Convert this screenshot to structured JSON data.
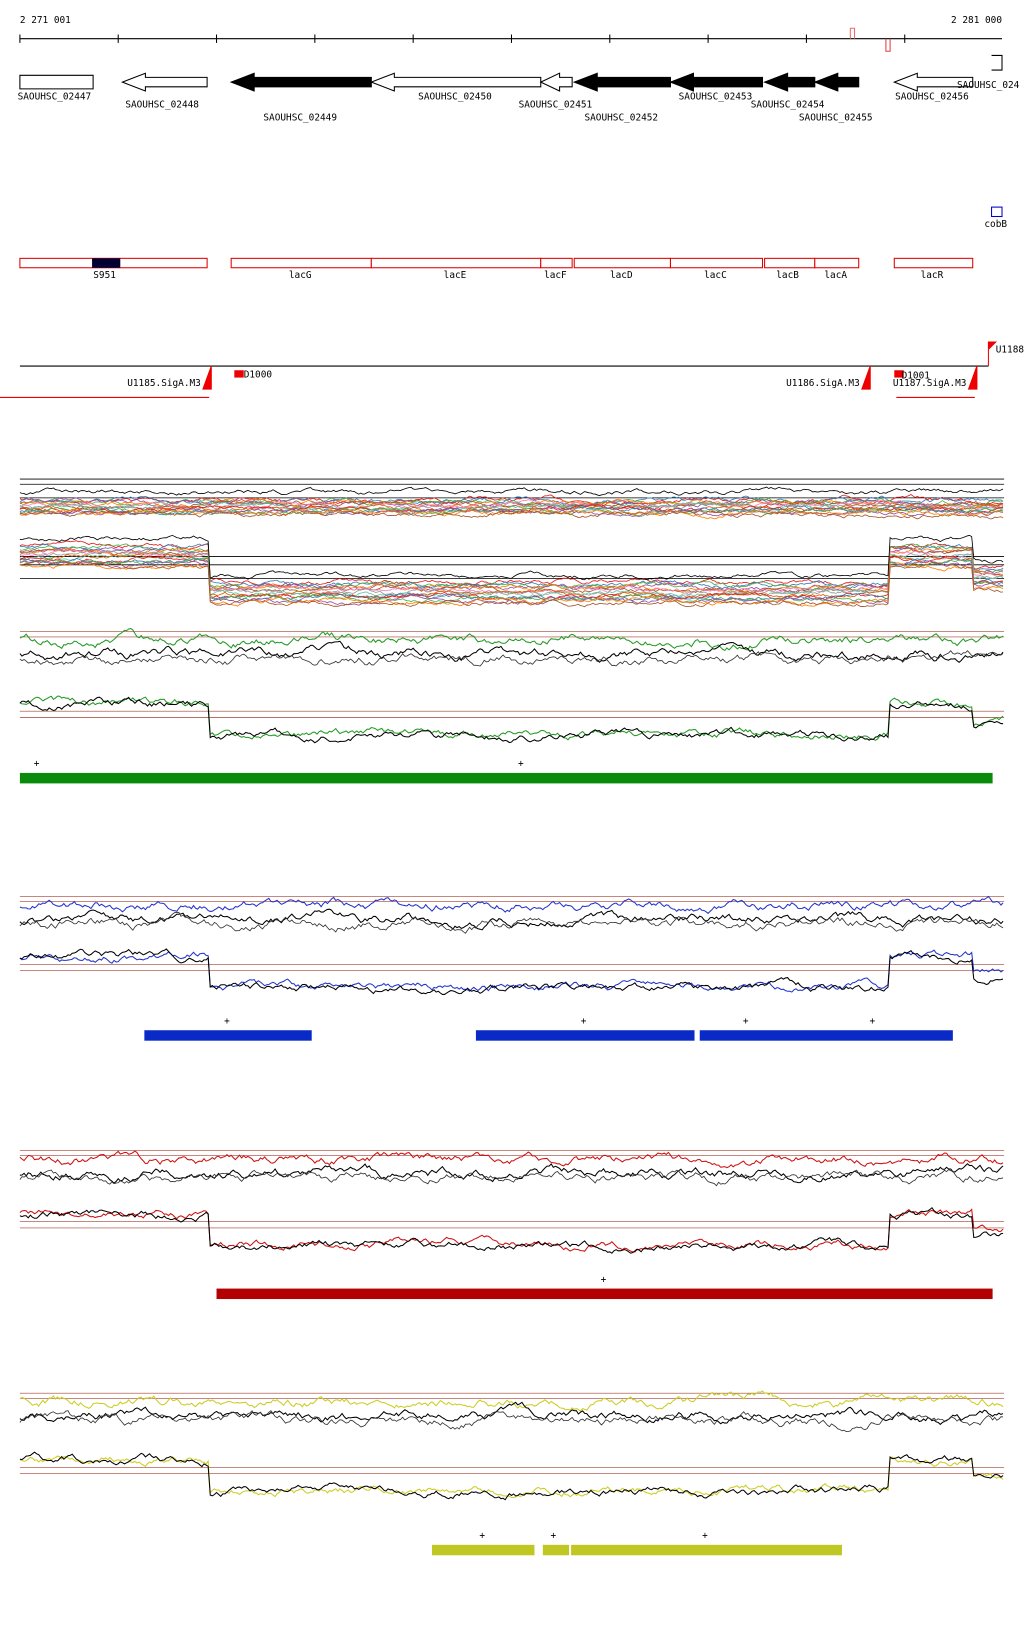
{
  "axis": {
    "start": "2 271 001",
    "end": "2 281 000"
  },
  "genes": [
    "SAOUHSC_02447",
    "SAOUHSC_02448",
    "SAOUHSC_02449",
    "SAOUHSC_02450",
    "SAOUHSC_02451",
    "SAOUHSC_02452",
    "SAOUHSC_02453",
    "SAOUHSC_02454",
    "SAOUHSC_02455",
    "SAOUHSC_02456",
    "SAOUHSC_024"
  ],
  "features": [
    "S951",
    "lacG",
    "lacE",
    "lacF",
    "lacD",
    "lacC",
    "lacB",
    "lacA",
    "lacR"
  ],
  "cobB": "cobB",
  "promoters": [
    "U1185.SigA.M3",
    "D1000",
    "U1186.SigA.M3",
    "D1001",
    "U1187.SigA.M3",
    "U1188"
  ],
  "strand_marks": {
    "green": [
      "+",
      "+"
    ],
    "blue": [
      "+",
      "+",
      "+",
      "+"
    ],
    "red": [
      "+"
    ],
    "yellow": [
      "+",
      "+",
      "+"
    ]
  }
}
